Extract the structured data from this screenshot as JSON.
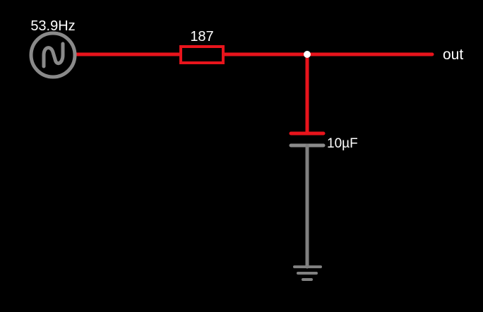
{
  "circuit": {
    "source": {
      "label": "53.9Hz",
      "icon": "ac-sine-source-icon"
    },
    "resistor": {
      "label": "187"
    },
    "capacitor": {
      "label": "10µF"
    },
    "output": {
      "label": "out"
    },
    "ground": {
      "icon": "ground-icon"
    }
  },
  "colors": {
    "background": "#000000",
    "live_wire": "#e8141c",
    "ground_wire": "#808080",
    "text": "#ffffff"
  }
}
